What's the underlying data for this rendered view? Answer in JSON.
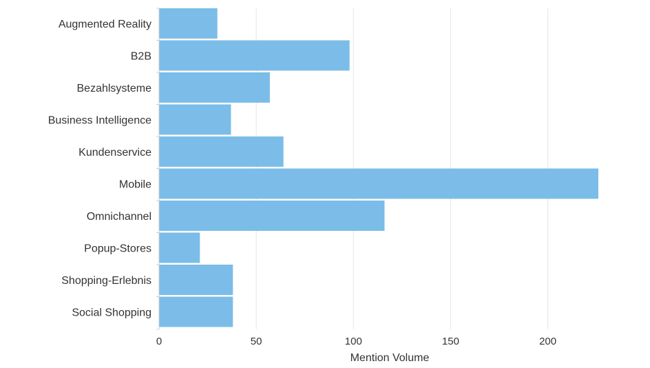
{
  "chart_data": {
    "type": "bar",
    "orientation": "horizontal",
    "categories": [
      "Augmented Reality",
      "B2B",
      "Bezahlsysteme",
      "Business Intelligence",
      "Kundenservice",
      "Mobile",
      "Omnichannel",
      "Popup-Stores",
      "Shopping-Erlebnis",
      "Social Shopping"
    ],
    "values": [
      30,
      98,
      57,
      37,
      64,
      226,
      116,
      21,
      38,
      38
    ],
    "xlabel": "Mention Volume",
    "ylabel": "",
    "xlim": [
      0,
      226
    ],
    "xticks": [
      0,
      50,
      100,
      150,
      200
    ],
    "grid": true,
    "colors": {
      "bar": "#7bbde8",
      "grid": "#e6e6e6",
      "axis": "#cccccc",
      "text": "#333333"
    }
  }
}
